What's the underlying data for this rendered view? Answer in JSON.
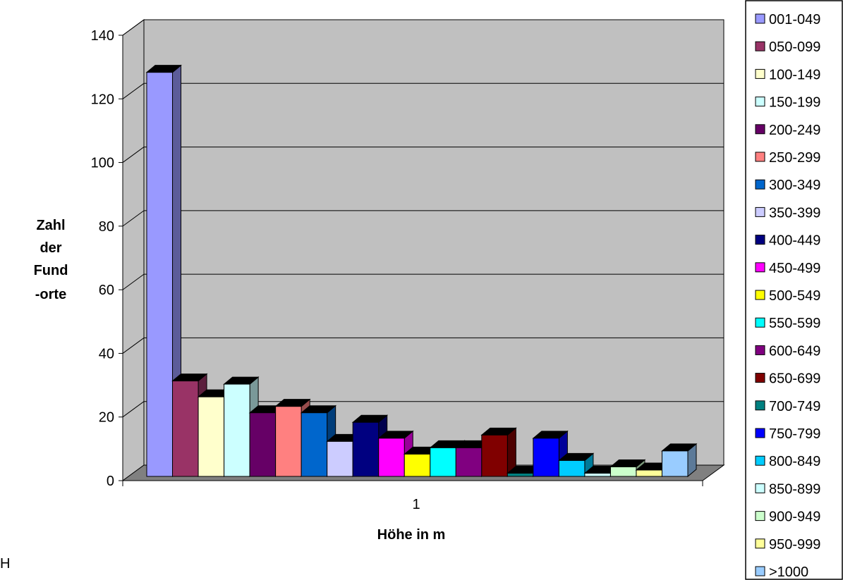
{
  "chart_data": {
    "type": "bar",
    "categories": [
      "1"
    ],
    "ylabel_lines": [
      "Zahl",
      "der",
      "Fund",
      "-orte"
    ],
    "xlabel": "Höhe in m",
    "ylim": [
      0,
      140
    ],
    "yticks": [
      "0",
      "20",
      "40",
      "60",
      "80",
      "100",
      "120",
      "140"
    ],
    "grid": true,
    "legend_position": "right",
    "series": [
      {
        "name": "001-049",
        "values": [
          127
        ],
        "color": "#9999ff"
      },
      {
        "name": "050-099",
        "values": [
          30
        ],
        "color": "#993366"
      },
      {
        "name": "100-149",
        "values": [
          25
        ],
        "color": "#ffffcc"
      },
      {
        "name": "150-199",
        "values": [
          29
        ],
        "color": "#ccffff"
      },
      {
        "name": "200-249",
        "values": [
          20
        ],
        "color": "#660066"
      },
      {
        "name": "250-299",
        "values": [
          22
        ],
        "color": "#ff8080"
      },
      {
        "name": "300-349",
        "values": [
          20
        ],
        "color": "#0066cc"
      },
      {
        "name": "350-399",
        "values": [
          11
        ],
        "color": "#ccccff"
      },
      {
        "name": "400-449",
        "values": [
          17
        ],
        "color": "#000080"
      },
      {
        "name": "450-499",
        "values": [
          12
        ],
        "color": "#ff00ff"
      },
      {
        "name": "500-549",
        "values": [
          7
        ],
        "color": "#ffff00"
      },
      {
        "name": "550-599",
        "values": [
          9
        ],
        "color": "#00ffff"
      },
      {
        "name": "600-649",
        "values": [
          9
        ],
        "color": "#800080"
      },
      {
        "name": "650-699",
        "values": [
          13
        ],
        "color": "#800000"
      },
      {
        "name": "700-749",
        "values": [
          1
        ],
        "color": "#008080"
      },
      {
        "name": "750-799",
        "values": [
          12
        ],
        "color": "#0000ff"
      },
      {
        "name": "800-849",
        "values": [
          5
        ],
        "color": "#00ccff"
      },
      {
        "name": "850-899",
        "values": [
          1
        ],
        "color": "#ccffff"
      },
      {
        "name": "900-949",
        "values": [
          3
        ],
        "color": "#ccffcc"
      },
      {
        "name": "950-999",
        "values": [
          2
        ],
        "color": "#ffff99"
      },
      {
        "name": ">1000",
        "values": [
          8
        ],
        "color": "#99ccff"
      }
    ],
    "floor_color": "#808080",
    "wall_color": "#c0c0c0"
  },
  "stray_text": "H"
}
